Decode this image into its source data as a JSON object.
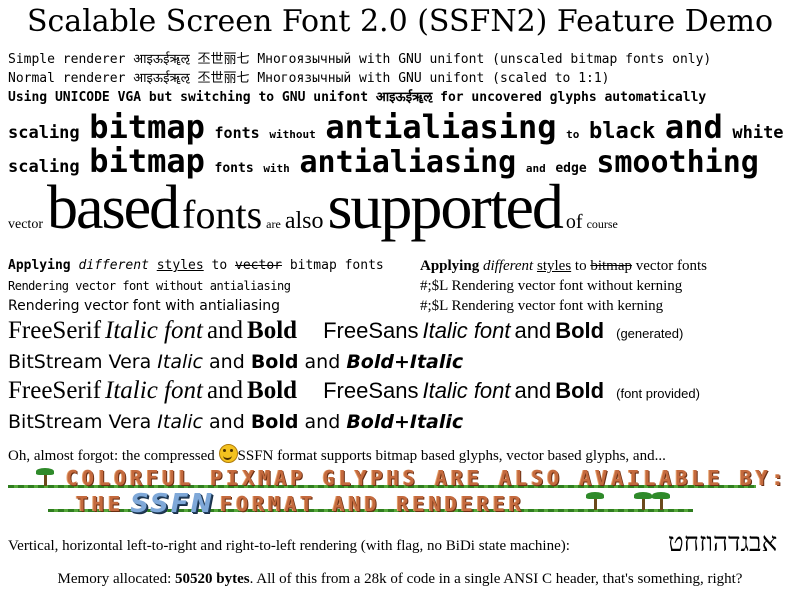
{
  "title": "Scalable Screen Font 2.0 (SSFN2) Feature Demo",
  "line1": "Simple renderer आइऊईॠऌ 丕世丽七 Многоязычный with GNU unifont (unscaled bitmap fonts only)",
  "line2": "Normal renderer आइऊईॠऌ 丕世丽七 Многоязычный with GNU unifont (scaled to 1:1)",
  "line3": "Using UNICODE VGA but switching to GNU unifont आइऊईॠऌ for uncovered glyphs automatically",
  "row4": {
    "w1": "scaling",
    "w2": "bitmap",
    "w3": "fonts",
    "w4": "without",
    "w5": "antialiasing",
    "w6": "to",
    "w7": "black",
    "w8": "and",
    "w9": "white"
  },
  "row5": {
    "w1": "scaling",
    "w2": "bitmap",
    "w3": "fonts",
    "w4": "with",
    "w5": "antialiasing",
    "w6": "and",
    "w7": "edge",
    "w8": "smoothing"
  },
  "row6": {
    "w1": "vector",
    "w2": "based",
    "w3": "fonts",
    "w4": "are",
    "w5": "also",
    "w6": "supported",
    "w7": "of",
    "w8": "course"
  },
  "left": {
    "a": "Applying",
    "b": "different",
    "c": "styles",
    "d": "to",
    "e": "vector",
    "f": "bitmap fonts",
    "l2": "Rendering vector font without antialiasing",
    "l3": "Rendering vector font with antialiasing"
  },
  "right": {
    "a": "Applying",
    "b": "different",
    "c": "styles",
    "d": "to",
    "e": "bitmap",
    "f": "vector fonts",
    "l2": "#;$L Rendering vector font without kerning",
    "l3": "#;$L Rendering vector font with kerning"
  },
  "gen": {
    "serif": "FreeSerif",
    "italic_font": "Italic font",
    "and": "and",
    "bold": "Bold",
    "sans": "FreeSans",
    "generated": "(generated)",
    "provided": "(font provided)",
    "vera": "BitStream Vera",
    "italic": "Italic",
    "bold_italic": "Bold+Italic"
  },
  "forgot": {
    "before": "Oh, almost forgot: the compressed ",
    "after": "SSFN format supports bitmap based glyphs, vector based glyphs, and..."
  },
  "pix1": "COLORFUL PIXMAP GLYPHS ARE ALSO AVAILABLE BY:",
  "pix2a": "THE",
  "pix2logo": "SSFN",
  "pix2b": "FORMAT AND RENDERER",
  "vertical": "Vertical, horizontal left-to-right and right-to-left rendering (with flag, no BiDi state machine):",
  "hebrew": "אבגדהוזחט",
  "mem": {
    "label": "Memory allocated: ",
    "value": "50520 bytes",
    "rest": ". All of this from a 28k of code in a single ANSI C header, that's something, right?"
  },
  "colors": {
    "pixmap_text": "#c46a3e",
    "grass": "#2f7d1f",
    "logo": "#7fa8d8",
    "smiley": "#f4c21f"
  }
}
